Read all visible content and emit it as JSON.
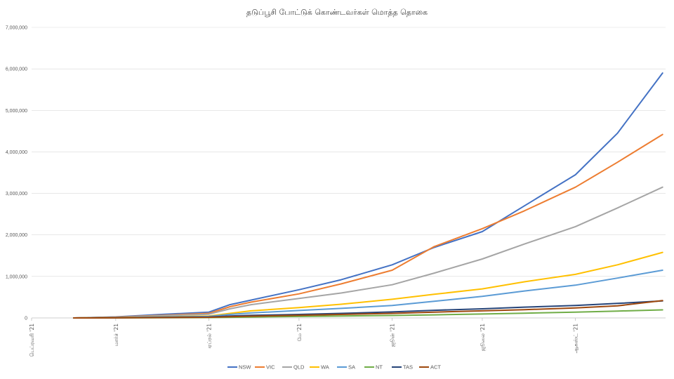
{
  "chart_data": {
    "type": "line",
    "title": "தடுப்பூசி போட்டுக் கொண்டவர்கள் மொத்த தொகை",
    "xlabel": "",
    "ylabel": "",
    "ylim": [
      0,
      7000000
    ],
    "yticks": [
      0,
      1000000,
      2000000,
      3000000,
      4000000,
      5000000,
      6000000,
      7000000
    ],
    "ytick_labels": [
      "0",
      "1,000,000",
      "2,000,000",
      "3,000,000",
      "4,000,000",
      "5,000,000",
      "6,000,000",
      "7,000,000"
    ],
    "xlim": [
      "2021-02-01",
      "2021-08-31"
    ],
    "xticks": [
      "2021-02-01",
      "2021-03-01",
      "2021-04-01",
      "2021-05-01",
      "2021-06-01",
      "2021-07-01",
      "2021-08-01"
    ],
    "xtick_labels": [
      "பெப்ரவரி '21",
      "மார்ச் '21",
      "ஏப்ரல் '21",
      "மே '21",
      "ஜூன் '21",
      "ஜூலை '21",
      "ஆகஸ்ட் '21"
    ],
    "grid": true,
    "legend": "bottom",
    "series": [
      {
        "name": "NSW",
        "color": "#4472c4",
        "x": [
          "2021-02-15",
          "2021-03-01",
          "2021-03-15",
          "2021-04-01",
          "2021-04-08",
          "2021-04-15",
          "2021-05-01",
          "2021-05-15",
          "2021-06-01",
          "2021-06-15",
          "2021-07-01",
          "2021-07-15",
          "2021-08-01",
          "2021-08-15",
          "2021-08-30"
        ],
        "y": [
          0,
          25000,
          80000,
          140000,
          320000,
          430000,
          680000,
          920000,
          1280000,
          1700000,
          2080000,
          2700000,
          3450000,
          4450000,
          5900000
        ]
      },
      {
        "name": "VIC",
        "color": "#ed7d31",
        "x": [
          "2021-02-15",
          "2021-03-01",
          "2021-03-15",
          "2021-04-01",
          "2021-04-08",
          "2021-04-15",
          "2021-05-01",
          "2021-05-15",
          "2021-06-01",
          "2021-06-15",
          "2021-07-01",
          "2021-07-15",
          "2021-08-01",
          "2021-08-15",
          "2021-08-30"
        ],
        "y": [
          0,
          20000,
          60000,
          110000,
          270000,
          380000,
          580000,
          820000,
          1150000,
          1720000,
          2150000,
          2580000,
          3150000,
          3750000,
          4420000
        ]
      },
      {
        "name": "QLD",
        "color": "#a5a5a5",
        "x": [
          "2021-02-15",
          "2021-03-01",
          "2021-03-15",
          "2021-04-01",
          "2021-04-08",
          "2021-04-15",
          "2021-05-01",
          "2021-05-15",
          "2021-06-01",
          "2021-06-15",
          "2021-07-01",
          "2021-07-15",
          "2021-08-01",
          "2021-08-15",
          "2021-08-30"
        ],
        "y": [
          0,
          15000,
          50000,
          90000,
          220000,
          320000,
          470000,
          600000,
          800000,
          1080000,
          1420000,
          1780000,
          2200000,
          2650000,
          3150000
        ]
      },
      {
        "name": "WA",
        "color": "#ffc000",
        "x": [
          "2021-02-15",
          "2021-03-01",
          "2021-03-15",
          "2021-04-01",
          "2021-04-08",
          "2021-04-15",
          "2021-05-01",
          "2021-05-15",
          "2021-06-01",
          "2021-06-15",
          "2021-07-01",
          "2021-07-15",
          "2021-08-01",
          "2021-08-15",
          "2021-08-30"
        ],
        "y": [
          0,
          8000,
          25000,
          45000,
          110000,
          170000,
          250000,
          330000,
          450000,
          570000,
          700000,
          870000,
          1050000,
          1280000,
          1580000
        ]
      },
      {
        "name": "SA",
        "color": "#5b9bd5",
        "x": [
          "2021-02-15",
          "2021-03-01",
          "2021-03-15",
          "2021-04-01",
          "2021-04-08",
          "2021-04-15",
          "2021-05-01",
          "2021-05-15",
          "2021-06-01",
          "2021-06-15",
          "2021-07-01",
          "2021-07-15",
          "2021-08-01",
          "2021-08-15",
          "2021-08-30"
        ],
        "y": [
          0,
          6000,
          20000,
          35000,
          85000,
          120000,
          180000,
          230000,
          300000,
          400000,
          520000,
          650000,
          790000,
          960000,
          1150000
        ]
      },
      {
        "name": "NT",
        "color": "#70ad47",
        "x": [
          "2021-02-15",
          "2021-03-01",
          "2021-03-15",
          "2021-04-01",
          "2021-04-08",
          "2021-04-15",
          "2021-05-01",
          "2021-05-15",
          "2021-06-01",
          "2021-06-15",
          "2021-07-01",
          "2021-07-15",
          "2021-08-01",
          "2021-08-15",
          "2021-08-30"
        ],
        "y": [
          0,
          1000,
          4000,
          8000,
          15000,
          22000,
          35000,
          45000,
          60000,
          75000,
          95000,
          115000,
          140000,
          165000,
          195000
        ]
      },
      {
        "name": "TAS",
        "color": "#264478",
        "x": [
          "2021-02-15",
          "2021-03-01",
          "2021-03-15",
          "2021-04-01",
          "2021-04-08",
          "2021-04-15",
          "2021-05-01",
          "2021-05-15",
          "2021-06-01",
          "2021-06-15",
          "2021-07-01",
          "2021-07-15",
          "2021-08-01",
          "2021-08-15",
          "2021-08-30"
        ],
        "y": [
          0,
          3000,
          12000,
          22000,
          45000,
          62000,
          85000,
          110000,
          145000,
          185000,
          220000,
          260000,
          300000,
          350000,
          410000
        ]
      },
      {
        "name": "ACT",
        "color": "#9e480e",
        "x": [
          "2021-02-15",
          "2021-03-01",
          "2021-03-15",
          "2021-04-01",
          "2021-04-08",
          "2021-04-15",
          "2021-05-01",
          "2021-05-15",
          "2021-06-01",
          "2021-06-15",
          "2021-07-01",
          "2021-07-15",
          "2021-08-01",
          "2021-08-15",
          "2021-08-30"
        ],
        "y": [
          0,
          2000,
          8000,
          15000,
          30000,
          42000,
          65000,
          85000,
          110000,
          140000,
          170000,
          200000,
          240000,
          290000,
          420000
        ]
      }
    ]
  }
}
